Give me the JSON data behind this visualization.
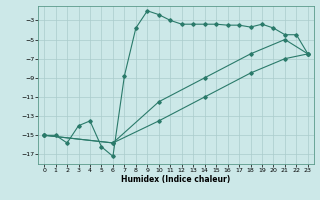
{
  "xlabel": "Humidex (Indice chaleur)",
  "bg_color": "#cce8e8",
  "line_color": "#2a7a6a",
  "grid_color": "#aacccc",
  "xlim": [
    -0.5,
    23.5
  ],
  "ylim": [
    -18,
    -1.5
  ],
  "xticks": [
    0,
    1,
    2,
    3,
    4,
    5,
    6,
    7,
    8,
    9,
    10,
    11,
    12,
    13,
    14,
    15,
    16,
    17,
    18,
    19,
    20,
    21,
    22,
    23
  ],
  "yticks": [
    -17,
    -15,
    -13,
    -11,
    -9,
    -7,
    -5,
    -3
  ],
  "series1_x": [
    0,
    1,
    2,
    3,
    4,
    5,
    6,
    7,
    8,
    9,
    10,
    11,
    12,
    13,
    14,
    15,
    16,
    17,
    18,
    19,
    20,
    21,
    22,
    23
  ],
  "series1_y": [
    -15,
    -15,
    -15.8,
    -14,
    -13.5,
    -16.2,
    -17.2,
    -8.8,
    -3.8,
    -2.0,
    -2.4,
    -3.0,
    -3.4,
    -3.4,
    -3.4,
    -3.4,
    -3.5,
    -3.5,
    -3.7,
    -3.4,
    -3.8,
    -4.5,
    -4.5,
    -6.5
  ],
  "series2_x": [
    0,
    6,
    10,
    14,
    18,
    21,
    23
  ],
  "series2_y": [
    -15,
    -15.8,
    -11.5,
    -9.0,
    -6.5,
    -5.0,
    -6.5
  ],
  "series3_x": [
    0,
    6,
    10,
    14,
    18,
    21,
    23
  ],
  "series3_y": [
    -15,
    -15.8,
    -13.5,
    -11.0,
    -8.5,
    -7.0,
    -6.5
  ]
}
